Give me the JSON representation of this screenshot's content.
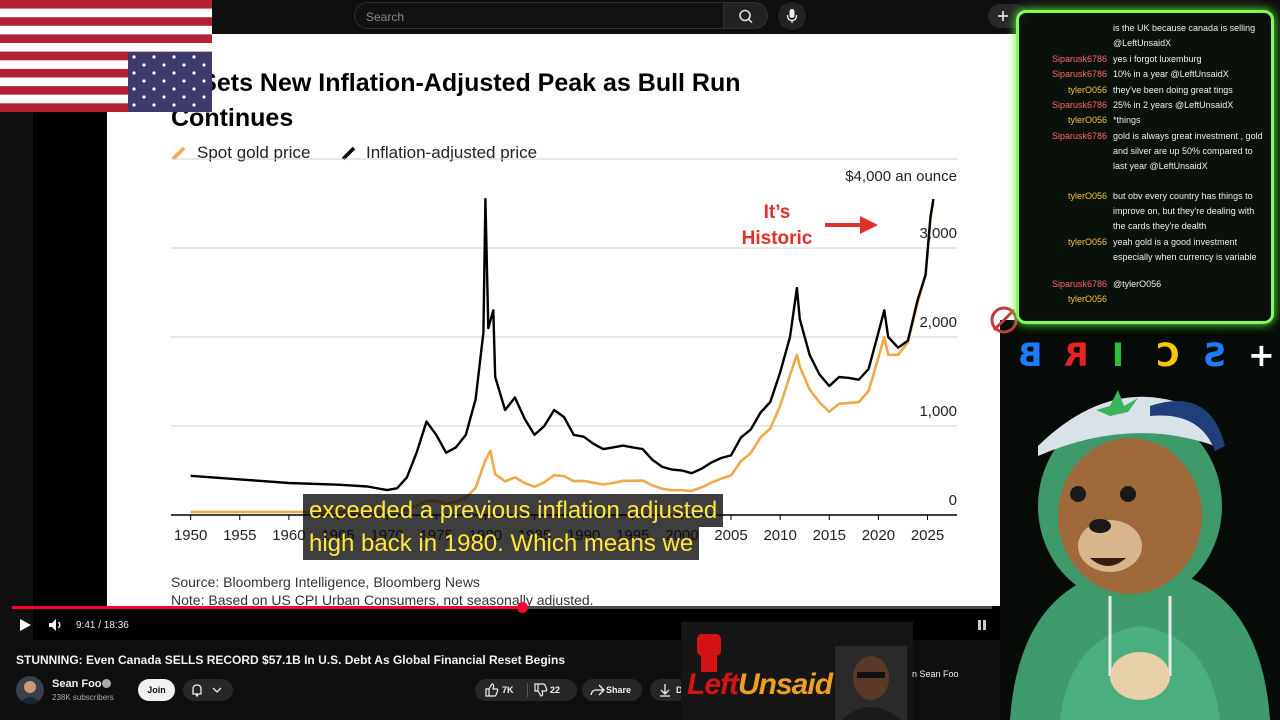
{
  "topbar": {
    "search_placeholder": "Search"
  },
  "chart_data": {
    "type": "line",
    "title": "Gold Sets New Inflation-Adjusted Peak as Bull Run Continues",
    "title_visible": "ld Sets New Inflation-Adjusted Peak as Bull Run Continues",
    "legend": [
      "Spot gold price",
      "Inflation-adjusted price"
    ],
    "unit_label": "$4,000 an ounce",
    "y_ticks": [
      "3,000",
      "2,000",
      "1,000",
      "0"
    ],
    "x_ticks": [
      "1950",
      "1955",
      "1960",
      "1965",
      "1970",
      "1975",
      "1980",
      "1985",
      "1990",
      "1995",
      "2000",
      "2005",
      "2010",
      "2015",
      "2020",
      "2025"
    ],
    "ylim": [
      0,
      4000
    ],
    "xlim": [
      1948,
      2028
    ],
    "annotation": "It's\nHistoric",
    "annotation_line1": "It’s",
    "annotation_line2": "Historic",
    "source": "Source: Bloomberg Intelligence, Bloomberg News",
    "note": "Note: Based on US CPI Urban Consumers, not seasonally adjusted.",
    "colors": {
      "spot": "#f0a848",
      "adjusted": "#000000",
      "annotation": "#e0302a"
    },
    "series": [
      {
        "name": "Spot gold price",
        "points": [
          [
            1950,
            35
          ],
          [
            1960,
            35
          ],
          [
            1965,
            35
          ],
          [
            1970,
            36
          ],
          [
            1972,
            58
          ],
          [
            1974,
            154
          ],
          [
            1975,
            161
          ],
          [
            1976,
            125
          ],
          [
            1977,
            148
          ],
          [
            1978,
            193
          ],
          [
            1979,
            306
          ],
          [
            1980,
            615
          ],
          [
            1980.5,
            720
          ],
          [
            1981,
            460
          ],
          [
            1982,
            376
          ],
          [
            1983,
            424
          ],
          [
            1984,
            360
          ],
          [
            1985,
            317
          ],
          [
            1986,
            368
          ],
          [
            1987,
            447
          ],
          [
            1988,
            437
          ],
          [
            1989,
            381
          ],
          [
            1990,
            383
          ],
          [
            1991,
            362
          ],
          [
            1992,
            344
          ],
          [
            1993,
            360
          ],
          [
            1994,
            384
          ],
          [
            1995,
            384
          ],
          [
            1996,
            388
          ],
          [
            1997,
            331
          ],
          [
            1998,
            294
          ],
          [
            1999,
            279
          ],
          [
            2000,
            279
          ],
          [
            2001,
            271
          ],
          [
            2002,
            310
          ],
          [
            2003,
            363
          ],
          [
            2004,
            409
          ],
          [
            2005,
            444
          ],
          [
            2006,
            603
          ],
          [
            2007,
            695
          ],
          [
            2008,
            872
          ],
          [
            2009,
            972
          ],
          [
            2010,
            1225
          ],
          [
            2011,
            1572
          ],
          [
            2011.7,
            1800
          ],
          [
            2012,
            1669
          ],
          [
            2013,
            1411
          ],
          [
            2014,
            1266
          ],
          [
            2015,
            1160
          ],
          [
            2016,
            1251
          ],
          [
            2017,
            1257
          ],
          [
            2018,
            1268
          ],
          [
            2019,
            1393
          ],
          [
            2020,
            1770
          ],
          [
            2020.6,
            2000
          ],
          [
            2021,
            1800
          ],
          [
            2022,
            1800
          ],
          [
            2023,
            1940
          ],
          [
            2024,
            2390
          ],
          [
            2024.8,
            2700
          ],
          [
            2025.3,
            3350
          ],
          [
            2025.6,
            3500
          ]
        ]
      },
      {
        "name": "Inflation-adjusted price",
        "points": [
          [
            1950,
            440
          ],
          [
            1955,
            400
          ],
          [
            1960,
            360
          ],
          [
            1965,
            340
          ],
          [
            1968,
            320
          ],
          [
            1970,
            280
          ],
          [
            1971,
            300
          ],
          [
            1972,
            420
          ],
          [
            1973,
            700
          ],
          [
            1974,
            1050
          ],
          [
            1975,
            900
          ],
          [
            1976,
            700
          ],
          [
            1977,
            760
          ],
          [
            1978,
            900
          ],
          [
            1979,
            1300
          ],
          [
            1979.8,
            2050
          ],
          [
            1980,
            3550
          ],
          [
            1980.3,
            2100
          ],
          [
            1980.8,
            2300
          ],
          [
            1981,
            1550
          ],
          [
            1982,
            1180
          ],
          [
            1983,
            1320
          ],
          [
            1984,
            1080
          ],
          [
            1985,
            900
          ],
          [
            1986,
            1000
          ],
          [
            1987,
            1180
          ],
          [
            1988,
            1100
          ],
          [
            1989,
            900
          ],
          [
            1990,
            880
          ],
          [
            1991,
            800
          ],
          [
            1992,
            740
          ],
          [
            1993,
            760
          ],
          [
            1994,
            780
          ],
          [
            1995,
            760
          ],
          [
            1996,
            740
          ],
          [
            1997,
            620
          ],
          [
            1998,
            540
          ],
          [
            1999,
            510
          ],
          [
            2000,
            500
          ],
          [
            2001,
            470
          ],
          [
            2002,
            520
          ],
          [
            2003,
            590
          ],
          [
            2004,
            640
          ],
          [
            2005,
            670
          ],
          [
            2006,
            870
          ],
          [
            2007,
            960
          ],
          [
            2008,
            1150
          ],
          [
            2009,
            1270
          ],
          [
            2010,
            1600
          ],
          [
            2011,
            2000
          ],
          [
            2011.7,
            2550
          ],
          [
            2012,
            2200
          ],
          [
            2013,
            1800
          ],
          [
            2014,
            1580
          ],
          [
            2015,
            1450
          ],
          [
            2016,
            1550
          ],
          [
            2017,
            1540
          ],
          [
            2018,
            1520
          ],
          [
            2019,
            1640
          ],
          [
            2020,
            2050
          ],
          [
            2020.6,
            2300
          ],
          [
            2021,
            2000
          ],
          [
            2022,
            1880
          ],
          [
            2023,
            1960
          ],
          [
            2024,
            2420
          ],
          [
            2024.8,
            2700
          ],
          [
            2025.3,
            3350
          ],
          [
            2025.6,
            3550
          ]
        ]
      }
    ]
  },
  "caption": {
    "line1": "exceeded a previous inflation adjusted",
    "line2": "high back in 1980. Which means we"
  },
  "player": {
    "time": "9:41 / 18:36",
    "progress_fraction": 0.52
  },
  "video": {
    "title": "STUNNING: Even Canada SELLS RECORD $57.1B In U.S. Debt As Global Financial Reset Begins",
    "channel": "Sean Foo",
    "subscribers": "238K subscribers",
    "join": "Join",
    "likes": "7K",
    "dislikes": "22",
    "share": "Share",
    "download": "D"
  },
  "chat": {
    "messages": [
      {
        "user": "",
        "text": "is the UK because canada is selling @LeftUnsaidX",
        "user_color": "#ff6a6a"
      },
      {
        "user": "Siparusk6786",
        "text": "yes i forgot luxemburg",
        "user_color": "#ff6a6a"
      },
      {
        "user": "Siparusk6786",
        "text": "10% in a year @LeftUnsaidX",
        "user_color": "#ff6a6a"
      },
      {
        "user": "tylerO056",
        "text": "they've been doing great tings",
        "user_color": "#f5c542"
      },
      {
        "user": "Siparusk6786",
        "text": "25% in 2 years @LeftUnsaidX",
        "user_color": "#ff6a6a"
      },
      {
        "user": "tylerO056",
        "text": "*things",
        "user_color": "#f5c542"
      },
      {
        "user": "Siparusk6786",
        "text": "gold is always great investment , gold and silver are up 50% compared to last year @LeftUnsaidX",
        "user_color": "#ff6a6a"
      },
      {
        "user": "tylerO056",
        "text": "but obv every country has things to improve on, but they're dealing with the cards they're dealth",
        "user_color": "#f5c542"
      },
      {
        "user": "tylerO056",
        "text": "yeah gold is a good investment especially when currency is variable",
        "user_color": "#f5c542"
      },
      {
        "user": "Siparusk6786",
        "text": "@tylerO056",
        "user_color": "#ff6a6a"
      },
      {
        "user": "tylerO056",
        "text": "",
        "user_color": "#f5c542"
      }
    ]
  },
  "overlay": {
    "letters": [
      "B",
      "R",
      "I",
      "C",
      "S",
      "+"
    ],
    "letter_colors": [
      "#1e7bff",
      "#e82222",
      "#29c43a",
      "#f5c800",
      "#1e7bff",
      "#ffffff"
    ],
    "brand": "LeftUnsaid",
    "brand_left": "Left",
    "brand_right": "Unsaid",
    "host_tag": "n Sean Foo"
  }
}
